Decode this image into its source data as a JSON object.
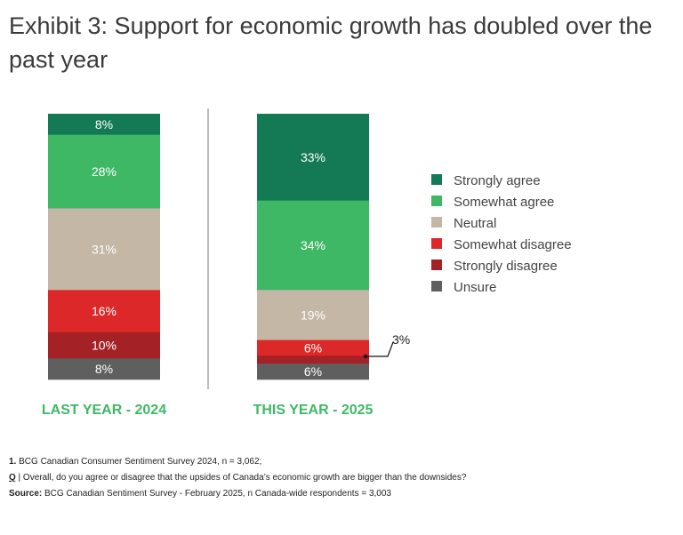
{
  "title": "Exhibit 3: Support for economic growth has doubled over the past year",
  "colors": {
    "strongly_agree": "#137a55",
    "somewhat_agree": "#3eb865",
    "neutral": "#c5b7a6",
    "somewhat_disagree": "#dc2828",
    "strongly_disagree": "#a42125",
    "unsure": "#5f5f5f",
    "category_label": "#3eb865"
  },
  "chart_data": {
    "type": "bar",
    "stacked": true,
    "normalized_percent": true,
    "categories": [
      "LAST YEAR - 2024",
      "THIS YEAR - 2025"
    ],
    "series": [
      {
        "name": "Strongly agree",
        "color": "#137a55",
        "values": [
          8,
          33
        ],
        "labels": [
          "8%",
          "33%"
        ]
      },
      {
        "name": "Somewhat agree",
        "color": "#3eb865",
        "values": [
          28,
          34
        ],
        "labels": [
          "28%",
          "34%"
        ]
      },
      {
        "name": "Neutral",
        "color": "#c5b7a6",
        "values": [
          31,
          19
        ],
        "labels": [
          "31%",
          "19%"
        ]
      },
      {
        "name": "Somewhat disagree",
        "color": "#dc2828",
        "values": [
          16,
          6
        ],
        "labels": [
          "16%",
          "6%"
        ]
      },
      {
        "name": "Strongly disagree",
        "color": "#a42125",
        "values": [
          10,
          3
        ],
        "labels": [
          "10%",
          "3%"
        ]
      },
      {
        "name": "Unsure",
        "color": "#5f5f5f",
        "values": [
          8,
          6
        ],
        "labels": [
          "8%",
          "6%"
        ]
      }
    ],
    "legend_position": "right",
    "grid": false,
    "divider_between_bars": true
  },
  "notes": {
    "note1_number": "1.",
    "note1_text": " BCG Canadian Consumer Sentiment Survey 2024, n = 3,062;",
    "question_prefix": "Q",
    "question_text": " | Overall, do you agree or disagree that the upsides of Canada’s economic growth are bigger than the downsides?",
    "source_prefix": "Source:",
    "source_text": " BCG Canadian Sentiment Survey - February 2025, n Canada-wide respondents = 3,003"
  }
}
